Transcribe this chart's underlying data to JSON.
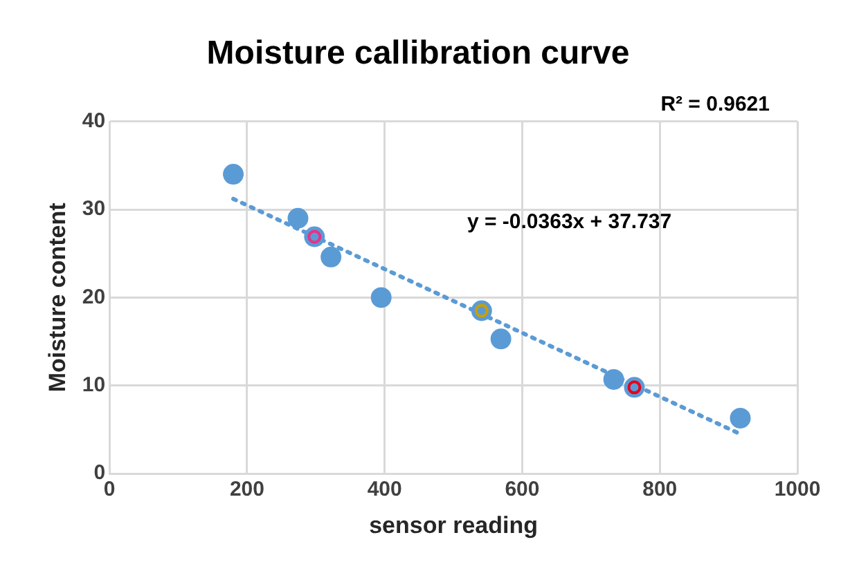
{
  "chart_data": {
    "type": "scatter",
    "title": "Moisture callibration curve",
    "xlabel": "sensor reading",
    "ylabel": "Moisture content",
    "xlim": [
      0,
      1000
    ],
    "xticks": [
      0,
      200,
      400,
      600,
      800,
      1000
    ],
    "ylim": [
      0,
      40
    ],
    "yticks": [
      0,
      10,
      20,
      30,
      40
    ],
    "grid": true,
    "legend": false,
    "marker": "circle",
    "annotations": [
      "R² = 0.9621",
      "y = -0.0363x + 37.737"
    ],
    "series": [
      {
        "type": "scatter",
        "color": "#5b9bd5",
        "x": [
          180,
          274,
          298,
          322,
          395,
          541,
          569,
          733,
          763,
          917
        ],
        "values": [
          34,
          29,
          26.9,
          24.6,
          20,
          18.5,
          15.3,
          10.7,
          9.8,
          6.3
        ]
      },
      {
        "type": "scatter",
        "colors": [
          "#e8318a",
          "#c8a000",
          "#e8001c"
        ],
        "x": [
          298,
          541,
          763
        ],
        "values": [
          26.9,
          18.5,
          9.8
        ]
      },
      {
        "type": "line",
        "color": "#5b9bd5",
        "line_style": "dotted",
        "marker": "none",
        "x": [
          180,
          917
        ],
        "values": [
          31.2,
          4.5
        ]
      }
    ]
  }
}
